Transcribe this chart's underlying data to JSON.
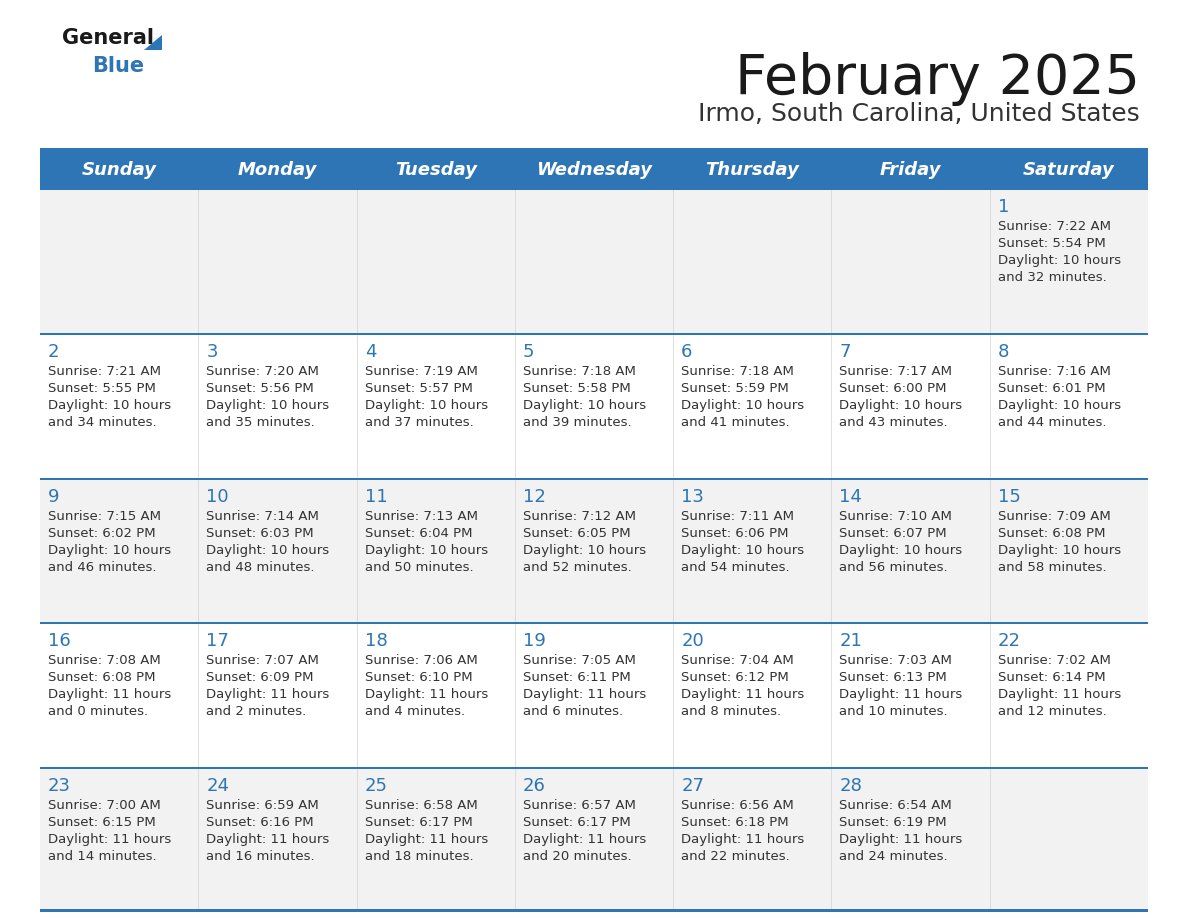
{
  "title": "February 2025",
  "subtitle": "Irmo, South Carolina, United States",
  "header_bg_color": "#2E75B6",
  "header_text_color": "#FFFFFF",
  "row_bg_colors": [
    "#F2F2F2",
    "#FFFFFF",
    "#F2F2F2",
    "#FFFFFF",
    "#F2F2F2"
  ],
  "separator_color": "#2E75B6",
  "days_of_week": [
    "Sunday",
    "Monday",
    "Tuesday",
    "Wednesday",
    "Thursday",
    "Friday",
    "Saturday"
  ],
  "title_color": "#1A1A1A",
  "subtitle_color": "#333333",
  "cell_text_color": "#333333",
  "day_num_color": "#2E75B6",
  "logo_general_color": "#1A1A1A",
  "logo_blue_color": "#2E75B6",
  "logo_triangle_color": "#2E75B6",
  "calendar_data": [
    [
      null,
      null,
      null,
      null,
      null,
      null,
      {
        "day": 1,
        "sunrise": "7:22 AM",
        "sunset": "5:54 PM",
        "daylight": "10 hours\nand 32 minutes."
      }
    ],
    [
      {
        "day": 2,
        "sunrise": "7:21 AM",
        "sunset": "5:55 PM",
        "daylight": "10 hours\nand 34 minutes."
      },
      {
        "day": 3,
        "sunrise": "7:20 AM",
        "sunset": "5:56 PM",
        "daylight": "10 hours\nand 35 minutes."
      },
      {
        "day": 4,
        "sunrise": "7:19 AM",
        "sunset": "5:57 PM",
        "daylight": "10 hours\nand 37 minutes."
      },
      {
        "day": 5,
        "sunrise": "7:18 AM",
        "sunset": "5:58 PM",
        "daylight": "10 hours\nand 39 minutes."
      },
      {
        "day": 6,
        "sunrise": "7:18 AM",
        "sunset": "5:59 PM",
        "daylight": "10 hours\nand 41 minutes."
      },
      {
        "day": 7,
        "sunrise": "7:17 AM",
        "sunset": "6:00 PM",
        "daylight": "10 hours\nand 43 minutes."
      },
      {
        "day": 8,
        "sunrise": "7:16 AM",
        "sunset": "6:01 PM",
        "daylight": "10 hours\nand 44 minutes."
      }
    ],
    [
      {
        "day": 9,
        "sunrise": "7:15 AM",
        "sunset": "6:02 PM",
        "daylight": "10 hours\nand 46 minutes."
      },
      {
        "day": 10,
        "sunrise": "7:14 AM",
        "sunset": "6:03 PM",
        "daylight": "10 hours\nand 48 minutes."
      },
      {
        "day": 11,
        "sunrise": "7:13 AM",
        "sunset": "6:04 PM",
        "daylight": "10 hours\nand 50 minutes."
      },
      {
        "day": 12,
        "sunrise": "7:12 AM",
        "sunset": "6:05 PM",
        "daylight": "10 hours\nand 52 minutes."
      },
      {
        "day": 13,
        "sunrise": "7:11 AM",
        "sunset": "6:06 PM",
        "daylight": "10 hours\nand 54 minutes."
      },
      {
        "day": 14,
        "sunrise": "7:10 AM",
        "sunset": "6:07 PM",
        "daylight": "10 hours\nand 56 minutes."
      },
      {
        "day": 15,
        "sunrise": "7:09 AM",
        "sunset": "6:08 PM",
        "daylight": "10 hours\nand 58 minutes."
      }
    ],
    [
      {
        "day": 16,
        "sunrise": "7:08 AM",
        "sunset": "6:08 PM",
        "daylight": "11 hours\nand 0 minutes."
      },
      {
        "day": 17,
        "sunrise": "7:07 AM",
        "sunset": "6:09 PM",
        "daylight": "11 hours\nand 2 minutes."
      },
      {
        "day": 18,
        "sunrise": "7:06 AM",
        "sunset": "6:10 PM",
        "daylight": "11 hours\nand 4 minutes."
      },
      {
        "day": 19,
        "sunrise": "7:05 AM",
        "sunset": "6:11 PM",
        "daylight": "11 hours\nand 6 minutes."
      },
      {
        "day": 20,
        "sunrise": "7:04 AM",
        "sunset": "6:12 PM",
        "daylight": "11 hours\nand 8 minutes."
      },
      {
        "day": 21,
        "sunrise": "7:03 AM",
        "sunset": "6:13 PM",
        "daylight": "11 hours\nand 10 minutes."
      },
      {
        "day": 22,
        "sunrise": "7:02 AM",
        "sunset": "6:14 PM",
        "daylight": "11 hours\nand 12 minutes."
      }
    ],
    [
      {
        "day": 23,
        "sunrise": "7:00 AM",
        "sunset": "6:15 PM",
        "daylight": "11 hours\nand 14 minutes."
      },
      {
        "day": 24,
        "sunrise": "6:59 AM",
        "sunset": "6:16 PM",
        "daylight": "11 hours\nand 16 minutes."
      },
      {
        "day": 25,
        "sunrise": "6:58 AM",
        "sunset": "6:17 PM",
        "daylight": "11 hours\nand 18 minutes."
      },
      {
        "day": 26,
        "sunrise": "6:57 AM",
        "sunset": "6:17 PM",
        "daylight": "11 hours\nand 20 minutes."
      },
      {
        "day": 27,
        "sunrise": "6:56 AM",
        "sunset": "6:18 PM",
        "daylight": "11 hours\nand 22 minutes."
      },
      {
        "day": 28,
        "sunrise": "6:54 AM",
        "sunset": "6:19 PM",
        "daylight": "11 hours\nand 24 minutes."
      },
      null
    ]
  ]
}
